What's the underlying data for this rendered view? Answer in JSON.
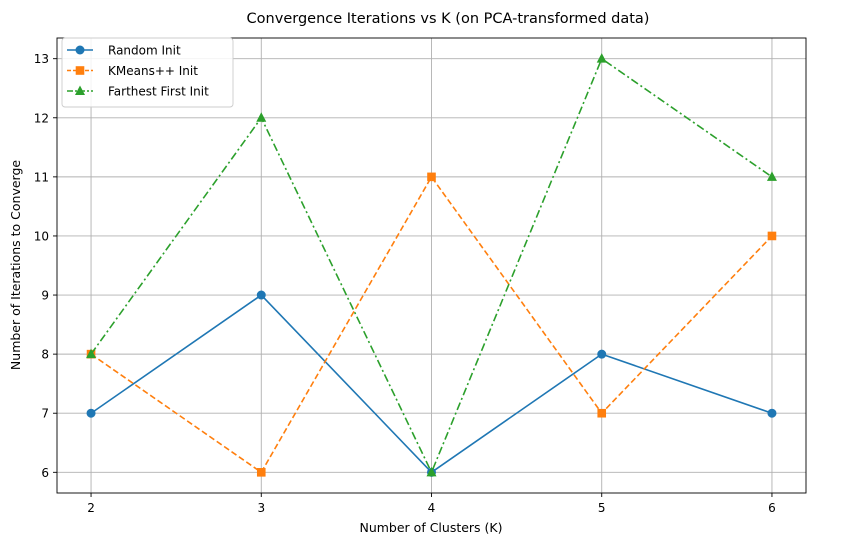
{
  "chart_data": {
    "type": "line",
    "title": "Convergence Iterations vs K (on PCA-transformed data)",
    "xlabel": "Number of Clusters (K)",
    "ylabel": "Number of Iterations to Converge",
    "x": [
      2,
      3,
      4,
      5,
      6
    ],
    "xlim": [
      1.8,
      6.2
    ],
    "ylim": [
      5.65,
      13.35
    ],
    "xticks": [
      2,
      3,
      4,
      5,
      6
    ],
    "yticks": [
      6,
      7,
      8,
      9,
      10,
      11,
      12,
      13
    ],
    "grid": true,
    "legend_position": "upper left",
    "series": [
      {
        "name": "Random Init",
        "values": [
          7,
          9,
          6,
          8,
          7
        ],
        "color": "#1f77b4",
        "linestyle": "solid",
        "marker": "circle"
      },
      {
        "name": "KMeans++ Init",
        "values": [
          8,
          6,
          11,
          7,
          10
        ],
        "color": "#ff7f0e",
        "linestyle": "dashed",
        "marker": "square"
      },
      {
        "name": "Farthest First Init",
        "values": [
          8,
          12,
          6,
          13,
          11
        ],
        "color": "#2ca02c",
        "linestyle": "dashdot",
        "marker": "triangle"
      }
    ]
  }
}
